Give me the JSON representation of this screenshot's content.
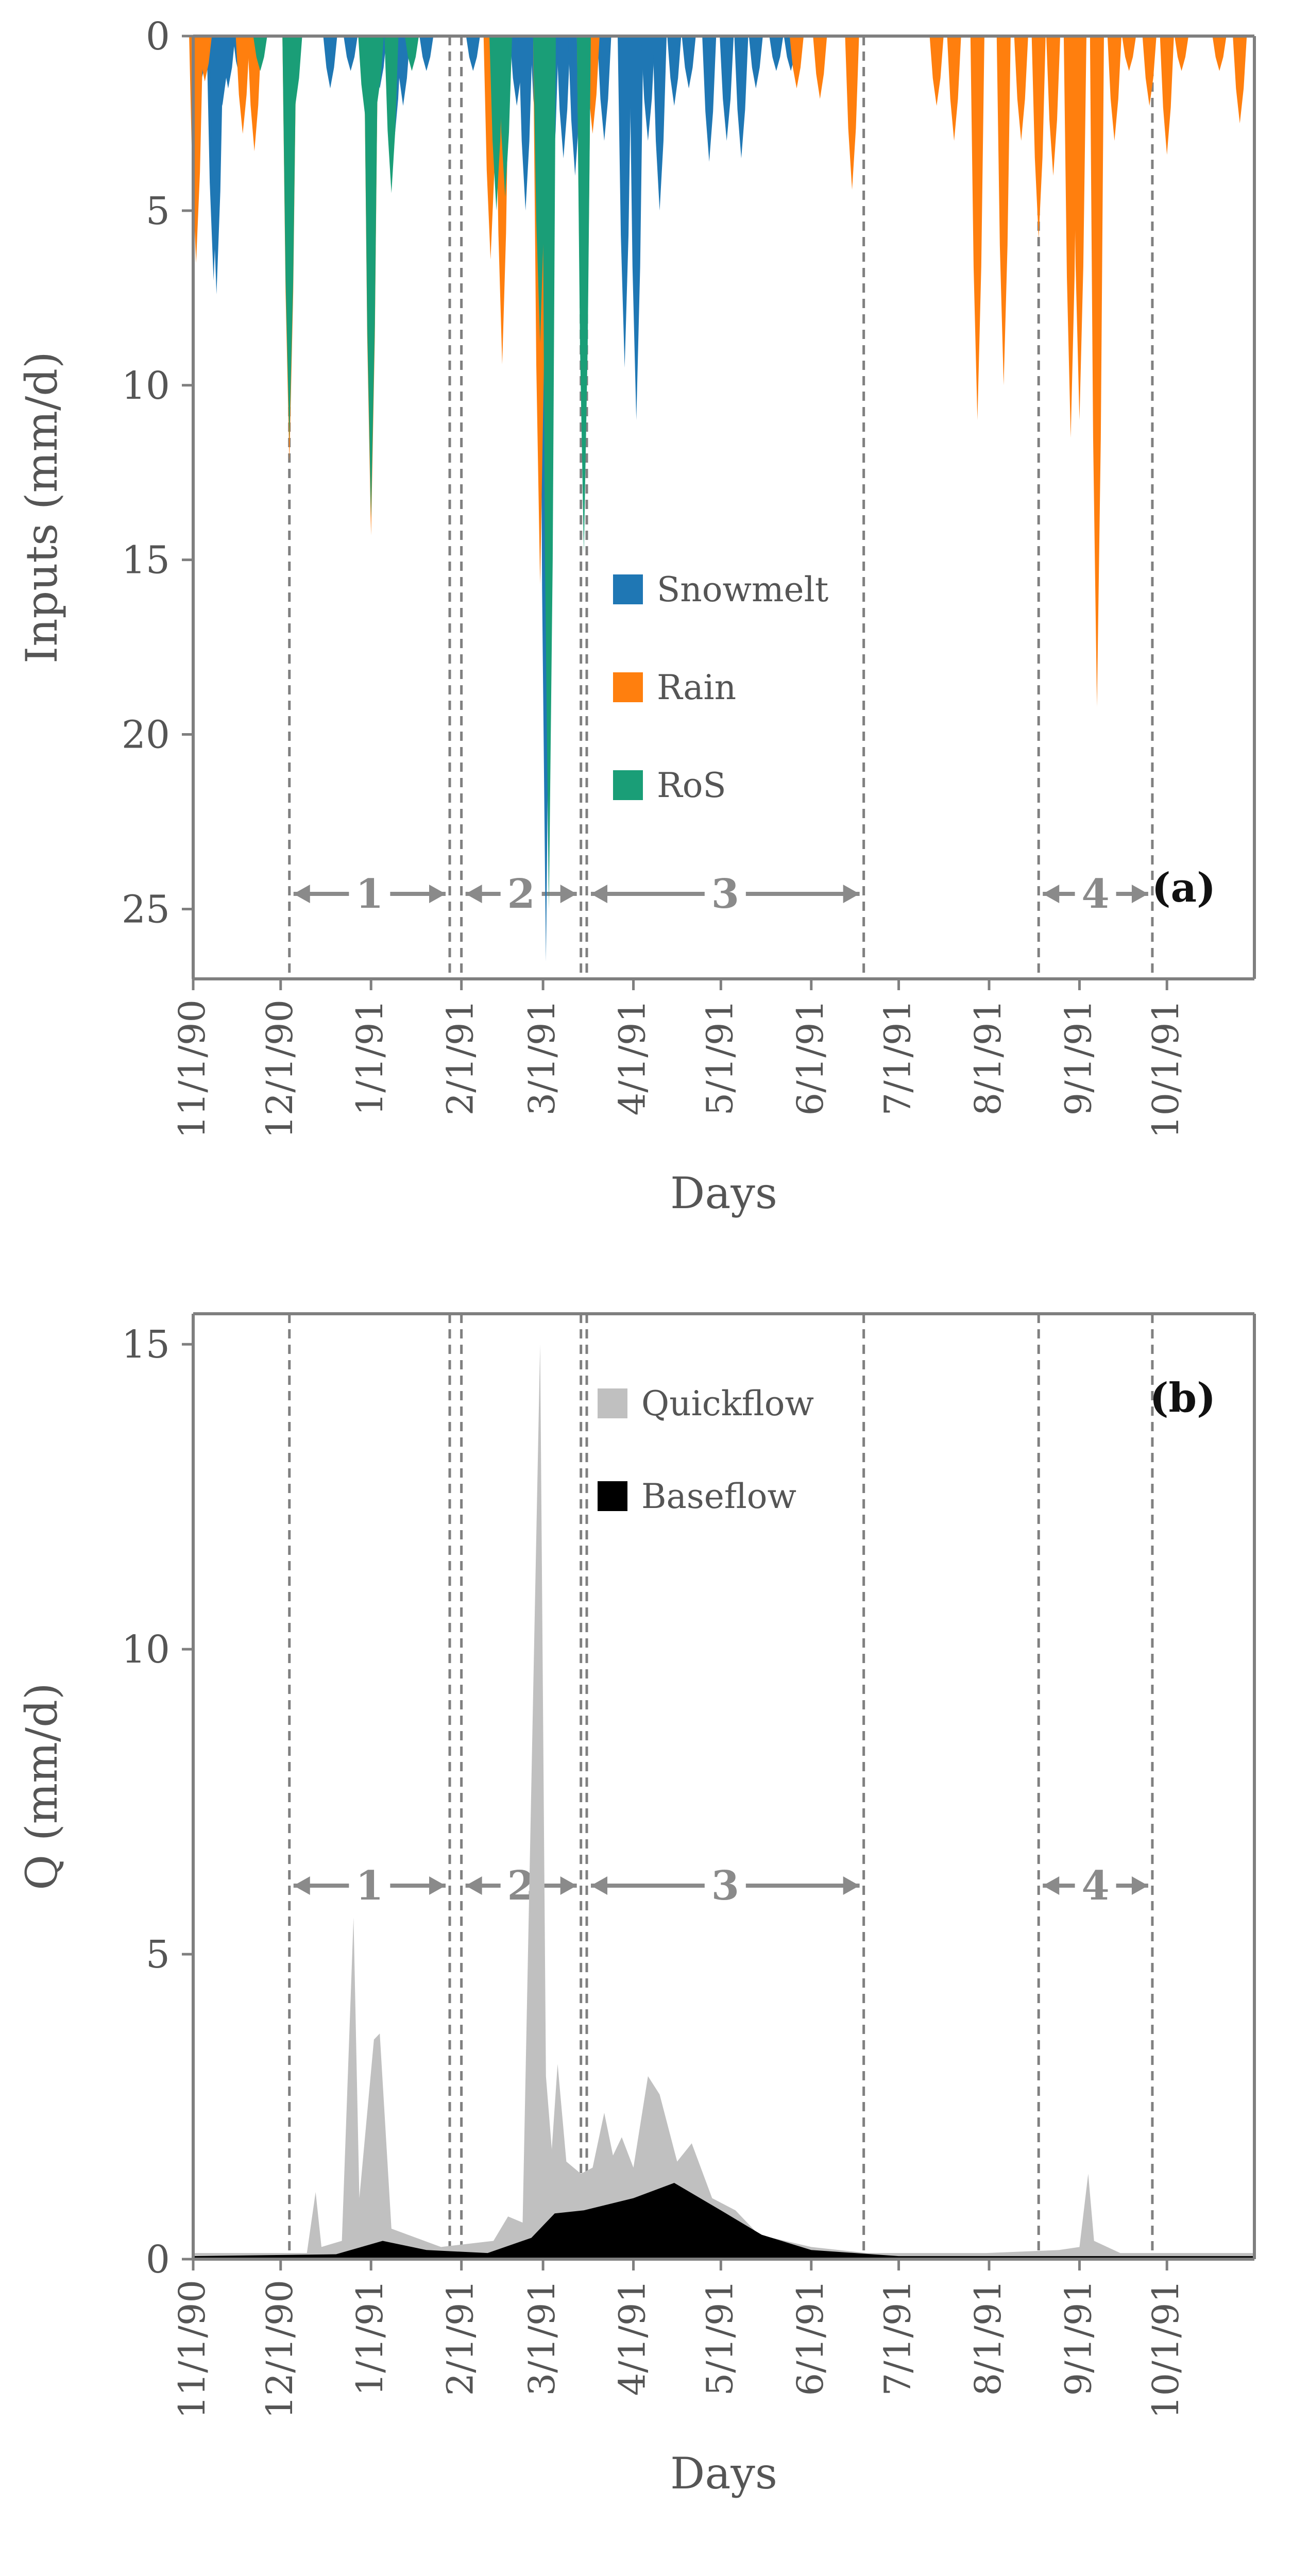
{
  "charts": [
    {
      "id": "a",
      "chart_data": {
        "type": "area",
        "title": "",
        "panel_label": "(a)",
        "xlabel": "Days",
        "ylabel": "Inputs (mm/d)",
        "y_inverted": true,
        "ylim": [
          0,
          27
        ],
        "yticks": [
          "0",
          "5",
          "10",
          "15",
          "20",
          "25"
        ],
        "x_dates": [
          "11/1/90",
          "12/1/90",
          "1/1/91",
          "2/1/91",
          "3/1/91",
          "4/1/91",
          "5/1/91",
          "6/1/91",
          "7/1/91",
          "8/1/91",
          "9/1/91",
          "10/1/91"
        ],
        "xlim": [
          "1990-11-01",
          "1991-10-31"
        ],
        "legend_position": "center",
        "series": [
          {
            "name": "Snowmelt",
            "color": "#1f77b4",
            "points": [
              [
                "1990-11-04",
                1.2
              ],
              [
                "1990-11-06",
                0.5
              ],
              [
                "1990-11-08",
                7.0
              ],
              [
                "1990-11-09",
                7.4
              ],
              [
                "1990-11-11",
                2.0
              ],
              [
                "1990-11-13",
                1.5
              ],
              [
                "1990-11-17",
                1.2
              ],
              [
                "1990-12-18",
                1.5
              ],
              [
                "1990-12-25",
                1.0
              ],
              [
                "1991-01-04",
                1.5
              ],
              [
                "1991-01-09",
                3.0
              ],
              [
                "1991-01-12",
                2.0
              ],
              [
                "1991-01-20",
                1.0
              ],
              [
                "1991-02-05",
                1.0
              ],
              [
                "1991-02-12",
                1.5
              ],
              [
                "1991-02-20",
                2.0
              ],
              [
                "1991-02-23",
                5.0
              ],
              [
                "1991-02-27",
                3.0
              ],
              [
                "1991-03-02",
                26.5
              ],
              [
                "1991-03-04",
                4.5
              ],
              [
                "1991-03-08",
                3.5
              ],
              [
                "1991-03-12",
                4.0
              ],
              [
                "1991-03-18",
                1.0
              ],
              [
                "1991-03-22",
                3.0
              ],
              [
                "1991-03-29",
                9.5
              ],
              [
                "1991-04-02",
                11.0
              ],
              [
                "1991-04-06",
                3.0
              ],
              [
                "1991-04-10",
                5.0
              ],
              [
                "1991-04-15",
                2.0
              ],
              [
                "1991-04-20",
                1.5
              ],
              [
                "1991-04-27",
                3.6
              ],
              [
                "1991-05-03",
                3.0
              ],
              [
                "1991-05-08",
                3.5
              ],
              [
                "1991-05-13",
                1.5
              ],
              [
                "1991-05-20",
                1.0
              ],
              [
                "1991-05-25",
                1.0
              ]
            ]
          },
          {
            "name": "Rain",
            "color": "#ff7f0e",
            "points": [
              [
                "1990-11-02",
                6.5
              ],
              [
                "1990-11-05",
                1.3
              ],
              [
                "1990-11-18",
                2.8
              ],
              [
                "1990-11-22",
                3.3
              ],
              [
                "1990-12-04",
                12.2
              ],
              [
                "1991-01-01",
                14.3
              ],
              [
                "1991-02-11",
                6.4
              ],
              [
                "1991-02-15",
                9.4
              ],
              [
                "1991-02-28",
                15.7
              ],
              [
                "1991-03-15",
                14.0
              ],
              [
                "1991-03-18",
                2.8
              ],
              [
                "1991-05-27",
                1.5
              ],
              [
                "1991-06-04",
                1.8
              ],
              [
                "1991-06-15",
                4.4
              ],
              [
                "1991-07-14",
                2.0
              ],
              [
                "1991-07-20",
                3.0
              ],
              [
                "1991-07-28",
                11.0
              ],
              [
                "1991-08-06",
                10.0
              ],
              [
                "1991-08-12",
                3.0
              ],
              [
                "1991-08-18",
                5.8
              ],
              [
                "1991-08-23",
                4.0
              ],
              [
                "1991-08-29",
                11.5
              ],
              [
                "1991-09-01",
                11.0
              ],
              [
                "1991-09-07",
                19.2
              ],
              [
                "1991-09-13",
                3.0
              ],
              [
                "1991-09-18",
                1.0
              ],
              [
                "1991-09-25",
                2.0
              ],
              [
                "1991-10-01",
                3.4
              ],
              [
                "1991-10-06",
                1.0
              ],
              [
                "1991-10-19",
                1.0
              ],
              [
                "1991-10-26",
                2.5
              ]
            ]
          },
          {
            "name": "RoS",
            "color": "#1a9e77",
            "points": [
              [
                "1990-11-24",
                1.0
              ],
              [
                "1990-12-04",
                11.6
              ],
              [
                "1990-12-06",
                2.0
              ],
              [
                "1990-12-30",
                2.3
              ],
              [
                "1991-01-01",
                13.8
              ],
              [
                "1991-01-03",
                2.0
              ],
              [
                "1991-01-08",
                4.5
              ],
              [
                "1991-01-15",
                1.0
              ],
              [
                "1991-02-13",
                5.0
              ],
              [
                "1991-02-16",
                4.6
              ],
              [
                "1991-02-28",
                8.8
              ],
              [
                "1991-03-03",
                25.0
              ],
              [
                "1991-03-15",
                14.8
              ]
            ]
          }
        ],
        "periods": [
          {
            "label": "1",
            "start": "1990-12-04",
            "end": "1991-01-28"
          },
          {
            "label": "2",
            "start": "1991-02-01",
            "end": "1991-03-14"
          },
          {
            "label": "3",
            "start": "1991-03-16",
            "end": "1991-06-19"
          },
          {
            "label": "4",
            "start": "1991-08-18",
            "end": "1991-09-26"
          }
        ]
      }
    },
    {
      "id": "b",
      "chart_data": {
        "type": "area",
        "title": "",
        "panel_label": "(b)",
        "xlabel": "Days",
        "ylabel": "Q (mm/d)",
        "ylim": [
          0,
          15.5
        ],
        "yticks": [
          "0",
          "5",
          "10",
          "15"
        ],
        "x_dates": [
          "11/1/90",
          "12/1/90",
          "1/1/91",
          "2/1/91",
          "3/1/91",
          "4/1/91",
          "5/1/91",
          "6/1/91",
          "7/1/91",
          "8/1/91",
          "9/1/91",
          "10/1/91"
        ],
        "xlim": [
          "1990-11-01",
          "1991-10-31"
        ],
        "legend_position": "top-center",
        "series": [
          {
            "name": "Quickflow",
            "color": "#c0c0c0",
            "points": [
              [
                "1990-11-01",
                0.1
              ],
              [
                "1990-12-10",
                0.1
              ],
              [
                "1990-12-13",
                1.1
              ],
              [
                "1990-12-15",
                0.2
              ],
              [
                "1990-12-22",
                0.3
              ],
              [
                "1990-12-26",
                5.6
              ],
              [
                "1990-12-28",
                1.0
              ],
              [
                "1991-01-02",
                3.6
              ],
              [
                "1991-01-04",
                3.7
              ],
              [
                "1991-01-08",
                0.5
              ],
              [
                "1991-01-25",
                0.2
              ],
              [
                "1991-02-12",
                0.3
              ],
              [
                "1991-02-17",
                0.7
              ],
              [
                "1991-02-22",
                0.6
              ],
              [
                "1991-02-28",
                15.0
              ],
              [
                "1991-03-02",
                3.0
              ],
              [
                "1991-03-04",
                1.8
              ],
              [
                "1991-03-06",
                3.2
              ],
              [
                "1991-03-09",
                1.6
              ],
              [
                "1991-03-14",
                1.4
              ],
              [
                "1991-03-18",
                1.5
              ],
              [
                "1991-03-22",
                2.4
              ],
              [
                "1991-03-25",
                1.7
              ],
              [
                "1991-03-28",
                2.0
              ],
              [
                "1991-04-01",
                1.5
              ],
              [
                "1991-04-06",
                3.0
              ],
              [
                "1991-04-10",
                2.7
              ],
              [
                "1991-04-16",
                1.6
              ],
              [
                "1991-04-21",
                1.9
              ],
              [
                "1991-04-28",
                1.0
              ],
              [
                "1991-05-06",
                0.8
              ],
              [
                "1991-05-14",
                0.4
              ],
              [
                "1991-06-01",
                0.2
              ],
              [
                "1991-06-20",
                0.1
              ],
              [
                "1991-07-31",
                0.1
              ],
              [
                "1991-08-25",
                0.15
              ],
              [
                "1991-09-01",
                0.2
              ],
              [
                "1991-09-04",
                1.4
              ],
              [
                "1991-09-06",
                0.3
              ],
              [
                "1991-09-15",
                0.1
              ],
              [
                "1991-10-31",
                0.1
              ]
            ]
          },
          {
            "name": "Baseflow",
            "color": "#000000",
            "points": [
              [
                "1990-11-01",
                0.05
              ],
              [
                "1990-12-20",
                0.08
              ],
              [
                "1991-01-05",
                0.3
              ],
              [
                "1991-01-20",
                0.15
              ],
              [
                "1991-02-10",
                0.1
              ],
              [
                "1991-02-25",
                0.35
              ],
              [
                "1991-03-05",
                0.75
              ],
              [
                "1991-03-15",
                0.8
              ],
              [
                "1991-04-01",
                1.0
              ],
              [
                "1991-04-15",
                1.25
              ],
              [
                "1991-05-01",
                0.8
              ],
              [
                "1991-05-15",
                0.4
              ],
              [
                "1991-06-01",
                0.15
              ],
              [
                "1991-07-01",
                0.05
              ],
              [
                "1991-10-31",
                0.05
              ]
            ]
          }
        ],
        "periods": [
          {
            "label": "1",
            "start": "1990-12-04",
            "end": "1991-01-28"
          },
          {
            "label": "2",
            "start": "1991-02-01",
            "end": "1991-03-14"
          },
          {
            "label": "3",
            "start": "1991-03-16",
            "end": "1991-06-19"
          },
          {
            "label": "4",
            "start": "1991-08-18",
            "end": "1991-09-26"
          }
        ]
      }
    }
  ]
}
